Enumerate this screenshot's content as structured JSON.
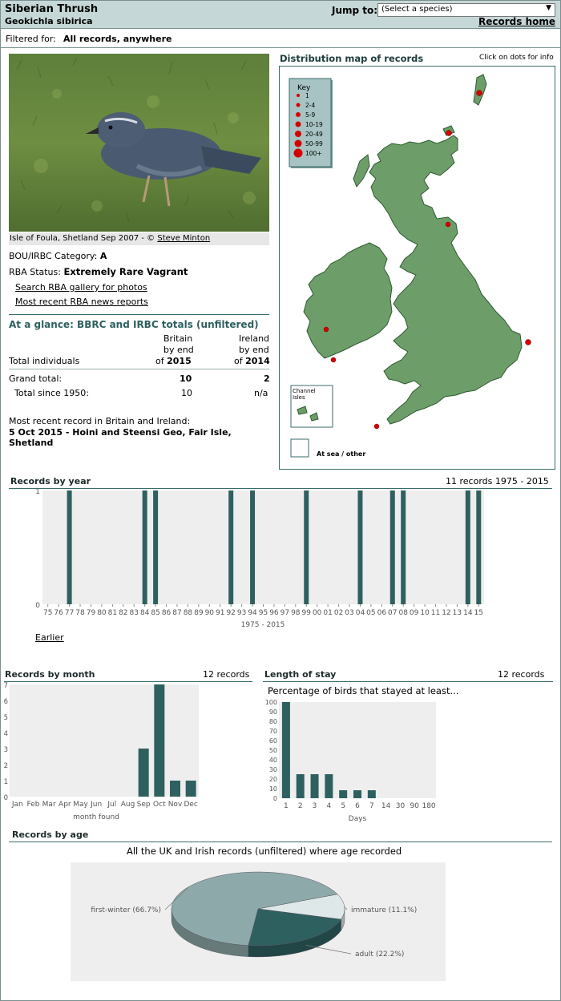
{
  "header": {
    "species_name": "Siberian Thrush",
    "scientific_name": "Geokichla sibirica",
    "jump_label": "Jump to:",
    "jump_select_value": "(Select a species)",
    "records_home": "Records home"
  },
  "filter": {
    "label": "Filtered for:",
    "value": "All records, anywhere"
  },
  "photo": {
    "caption": "Isle of Foula, Shetland Sep 2007 - © ",
    "credit": "Steve Minton"
  },
  "status": {
    "bou_label": "BOU/IRBC Category:",
    "bou_value": "A",
    "rba_label": "RBA Status:",
    "rba_value": "Extremely Rare Vagrant",
    "gallery_link": "Search RBA gallery for photos",
    "news_link": "Most recent RBA news reports"
  },
  "glance": {
    "title": "At a glance: BBRC and IRBC totals (unfiltered)",
    "britain_l1": "Britain",
    "britain_l2": "by end",
    "britain_of": "of ",
    "britain_year": "2015",
    "ireland_l1": "Ireland",
    "ireland_l2": "by end",
    "ireland_of": "of ",
    "ireland_year": "2014",
    "total_individuals": "Total individuals",
    "grand_total_label": "Grand total:",
    "grand_total_britain": "10",
    "grand_total_ireland": "2",
    "since_label": "Total since 1950:",
    "since_britain": "10",
    "since_ireland": "n/a",
    "recent_label": "Most recent record in Britain and Ireland:",
    "recent_l1": "5 Oct 2015  - Hoini and Steensi Geo, Fair Isle,",
    "recent_l2": "Shetland"
  },
  "map": {
    "title": "Distribution map of records",
    "hint": "Click on dots for info",
    "key_title": "Key",
    "key": [
      "1",
      "2-4",
      "5-9",
      "10-19",
      "20-49",
      "50-99",
      "100+"
    ],
    "channel_isles": [
      "Channel",
      "Isles"
    ],
    "at_sea": "At sea / other",
    "colors": {
      "land": "#6d9e6a",
      "dot": "#d40000",
      "border": "#3a6b6b"
    }
  },
  "by_year": {
    "title": "Records by year",
    "summary": "11 records 1975 - 2015",
    "earlier_link": "Earlier",
    "chart_data": {
      "type": "bar",
      "categories": [
        "75",
        "76",
        "77",
        "78",
        "79",
        "80",
        "81",
        "82",
        "83",
        "84",
        "85",
        "86",
        "87",
        "88",
        "89",
        "90",
        "91",
        "92",
        "93",
        "94",
        "95",
        "96",
        "97",
        "98",
        "99",
        "00",
        "01",
        "02",
        "03",
        "04",
        "05",
        "06",
        "07",
        "08",
        "09",
        "10",
        "11",
        "12",
        "13",
        "14",
        "15"
      ],
      "values": [
        0,
        0,
        1,
        0,
        0,
        0,
        0,
        0,
        0,
        1,
        1,
        0,
        0,
        0,
        0,
        0,
        0,
        1,
        0,
        1,
        0,
        0,
        0,
        0,
        1,
        0,
        0,
        0,
        0,
        1,
        0,
        0,
        1,
        1,
        0,
        0,
        0,
        0,
        0,
        1,
        1
      ],
      "xlabel": "1975 - 2015",
      "ylim": [
        0,
        1
      ],
      "yticks": [
        "0",
        "1"
      ]
    }
  },
  "by_month": {
    "title": "Records by month",
    "summary": "12 records",
    "chart_data": {
      "type": "bar",
      "categories": [
        "Jan",
        "Feb",
        "Mar",
        "Apr",
        "May",
        "Jun",
        "Jul",
        "Aug",
        "Sep",
        "Oct",
        "Nov",
        "Dec"
      ],
      "values": [
        0,
        0,
        0,
        0,
        0,
        0,
        0,
        0,
        3,
        7,
        1,
        1
      ],
      "xlabel": "month found",
      "ylim": [
        0,
        7
      ],
      "yticks": [
        "0",
        "1",
        "2",
        "3",
        "4",
        "5",
        "6",
        "7"
      ]
    }
  },
  "stay": {
    "title": "Length of stay",
    "summary": "12 records",
    "subtitle": "Percentage of birds that stayed at least...",
    "chart_data": {
      "type": "bar",
      "categories": [
        "1",
        "2",
        "3",
        "4",
        "5",
        "6",
        "7",
        "14",
        "30",
        "90",
        "180"
      ],
      "values": [
        100,
        25,
        25,
        25,
        8.3,
        8.3,
        8.3,
        0,
        0,
        0,
        0
      ],
      "xlabel": "Days",
      "ylim": [
        0,
        100
      ],
      "yticks": [
        "0",
        "10",
        "20",
        "30",
        "40",
        "50",
        "60",
        "70",
        "80",
        "90",
        "100"
      ]
    }
  },
  "by_age": {
    "title": "Records by age",
    "subtitle": "All the UK and Irish records (unfiltered) where age recorded",
    "chart_data": {
      "type": "pie",
      "slices": [
        {
          "label": "first-winter (66.7%)",
          "value": 66.7,
          "color": "#8ea9a9"
        },
        {
          "label": "immature (11.1%)",
          "value": 11.1,
          "color": "#dfe8e8"
        },
        {
          "label": "adult (22.2%)",
          "value": 22.2,
          "color": "#2f6060"
        }
      ]
    }
  }
}
